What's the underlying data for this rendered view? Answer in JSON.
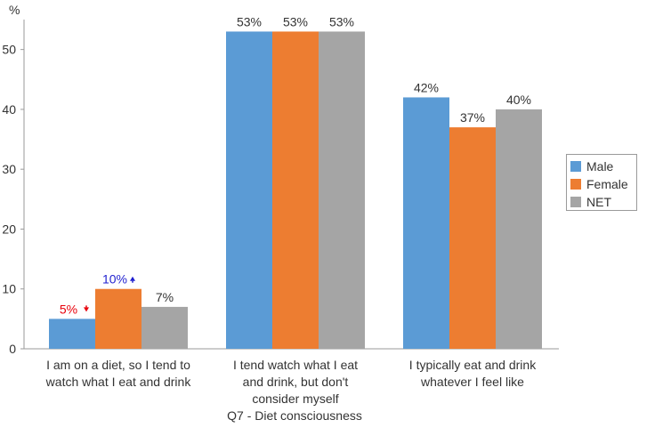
{
  "chart_data": {
    "type": "bar",
    "title": "",
    "xlabel": "Q7 - Diet consciousness",
    "ylabel": "%",
    "ylim": [
      0,
      55
    ],
    "yticks": [
      0,
      10,
      20,
      30,
      40,
      50
    ],
    "grid": false,
    "legend_position": "right",
    "categories": [
      [
        "I am on a diet, so I tend to",
        "watch what I eat and drink"
      ],
      [
        "I tend watch what I eat",
        "and drink, but don't",
        "consider myself"
      ],
      [
        "I typically eat and drink",
        "whatever I feel like"
      ]
    ],
    "series": [
      {
        "name": "Male",
        "color": "#5b9bd5",
        "values": [
          5,
          53,
          42
        ],
        "labels": [
          "5%",
          "53%",
          "42%"
        ]
      },
      {
        "name": "Female",
        "color": "#ed7d31",
        "values": [
          10,
          53,
          37
        ],
        "labels": [
          "10%",
          "53%",
          "37%"
        ]
      },
      {
        "name": "NET",
        "color": "#a5a5a5",
        "values": [
          7,
          53,
          40
        ],
        "labels": [
          "7%",
          "53%",
          "40%"
        ]
      }
    ],
    "annotations": [
      {
        "series": 0,
        "category": 0,
        "arrow": "down",
        "color": "#e8000b"
      },
      {
        "series": 1,
        "category": 0,
        "arrow": "up",
        "color": "#1f1fcf"
      }
    ]
  }
}
